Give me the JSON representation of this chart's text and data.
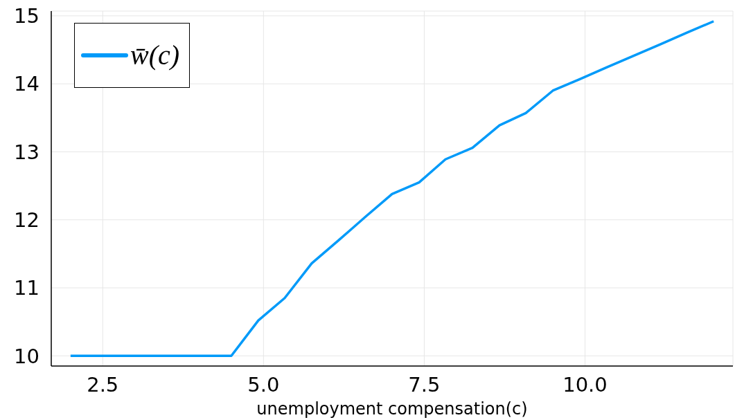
{
  "chart_data": {
    "type": "line",
    "xlabel": "unemployment compensation(c)",
    "x": [
      2,
      2.42,
      2.83,
      3.25,
      3.67,
      4.08,
      4.5,
      4.92,
      5.33,
      5.75,
      6.17,
      6.58,
      7,
      7.42,
      7.83,
      8.25,
      8.67,
      9.08,
      9.5,
      9.92,
      10.33,
      10.75,
      11.17,
      11.58,
      12
    ],
    "series": [
      {
        "name": "w̄(c)",
        "color": "#009af9",
        "values": [
          10,
          10,
          10,
          10,
          10,
          10,
          10,
          10.52,
          10.85,
          11.36,
          11.7,
          12.04,
          12.38,
          12.55,
          12.89,
          13.06,
          13.39,
          13.57,
          13.9,
          14.07,
          14.24,
          14.41,
          14.58,
          14.75,
          14.92
        ]
      }
    ],
    "xlim": [
      1.7,
      12.3
    ],
    "xticks": [
      2.5,
      {
        "value": 5,
        "label": "5.0"
      },
      7.5,
      {
        "value": 10,
        "label": "10.0"
      }
    ],
    "ylim": [
      9.85,
      15.07
    ],
    "yticks": [
      10,
      11,
      12,
      13,
      14,
      15
    ],
    "grid": true,
    "legend": "top left"
  }
}
